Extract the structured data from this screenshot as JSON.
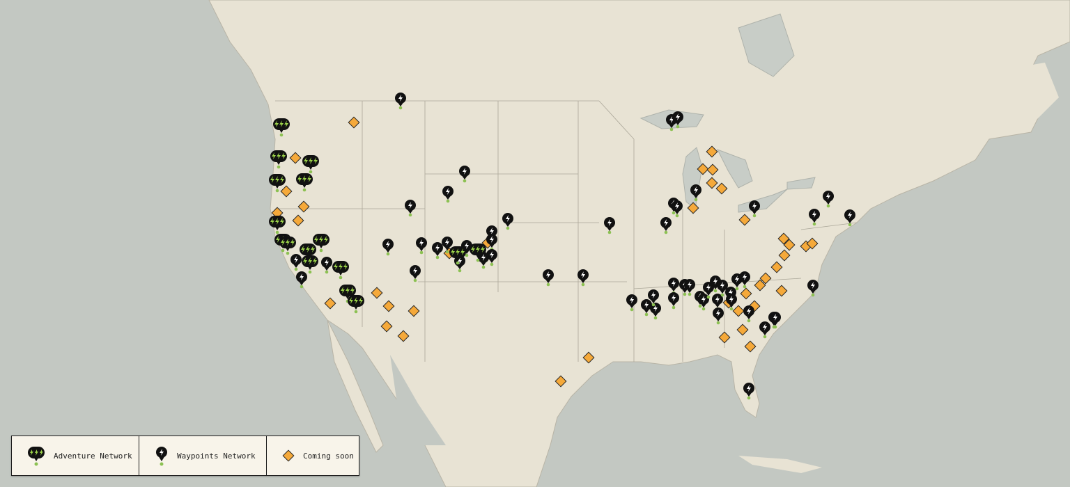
{
  "map": {
    "colors": {
      "ocean": "#c3c8c2",
      "land": "#e8e3d4",
      "lakes": "#c5cac4",
      "borders": "#a9a496",
      "pin": "#111111",
      "bolt_adventure": "#9bd24a",
      "bolt_waypoint": "#ffffff",
      "dot": "#8cc152",
      "coming_soon": "#f5a93a"
    }
  },
  "legend": {
    "items": [
      {
        "label": "Adventure Network",
        "icon": "triple-bolt-pin-icon"
      },
      {
        "label": "Waypoints Network",
        "icon": "bolt-pin-icon"
      },
      {
        "label": "Coming soon",
        "icon": "orange-diamond-icon"
      }
    ]
  }
}
